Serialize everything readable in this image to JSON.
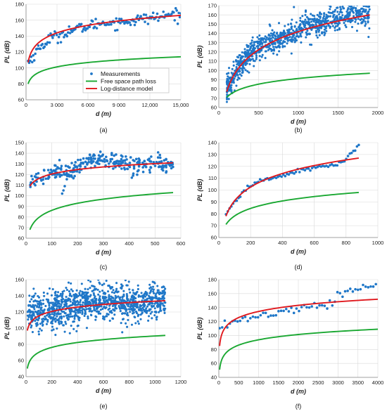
{
  "legend": {
    "position": "inside-center of panel (a)",
    "entries": [
      {
        "label": "Measurements",
        "kind": "points",
        "color": "#1f77c8"
      },
      {
        "label": "Free space path loss",
        "kind": "line",
        "color": "#1aa832"
      },
      {
        "label": "Log-distance model",
        "kind": "line",
        "color": "#e0191e"
      }
    ]
  },
  "colors": {
    "measurements": "#1f77c8",
    "fspl": "#1aa832",
    "logdist": "#e0191e",
    "grid": "#d9d9d9",
    "axis": "#888888"
  },
  "chart_data": [
    {
      "type": "scatter",
      "caption": "(a)",
      "xlabel": "d (m)",
      "ylabel": "PL (dB)",
      "xlim": [
        0,
        15000
      ],
      "ylim": [
        60,
        180
      ],
      "xticks": [
        0,
        3000,
        6000,
        9000,
        12000,
        15000
      ],
      "xtick_labels": [
        "0",
        "3 000",
        "6 000",
        "9 000",
        "12,000",
        "15,000"
      ],
      "yticks": [
        60,
        80,
        100,
        120,
        140,
        160,
        180
      ],
      "grid": true,
      "series": [
        {
          "name": "Measurements",
          "kind": "points",
          "count": 150,
          "x_range": [
            200,
            15000
          ],
          "trend": [
            [
              300,
              108
            ],
            [
              600,
              113
            ],
            [
              1000,
              121
            ],
            [
              1500,
              127
            ],
            [
              2000,
              133
            ],
            [
              2500,
              140
            ],
            [
              3000,
              138
            ],
            [
              4000,
              146
            ],
            [
              5000,
              149
            ],
            [
              6000,
              152
            ],
            [
              7000,
              156
            ],
            [
              8000,
              157
            ],
            [
              9000,
              157
            ],
            [
              10000,
              159
            ],
            [
              11000,
              161
            ],
            [
              12000,
              163
            ],
            [
              13000,
              164
            ],
            [
              14000,
              167
            ],
            [
              15000,
              168
            ]
          ],
          "spread": 3.5
        },
        {
          "name": "Free space path loss",
          "kind": "line",
          "x_range": [
            200,
            15000
          ],
          "y_start": 80,
          "y_end": 114
        },
        {
          "name": "Log-distance model",
          "kind": "line",
          "x_range": [
            200,
            15000
          ],
          "y_start": 107,
          "y_end": 166
        }
      ]
    },
    {
      "type": "scatter",
      "caption": "(b)",
      "xlabel": "d (m)",
      "ylabel": "PL (dB)",
      "xlim": [
        0,
        2000
      ],
      "ylim": [
        60,
        170
      ],
      "xticks": [
        0,
        500,
        1000,
        1500,
        2000
      ],
      "yticks": [
        60,
        70,
        80,
        90,
        100,
        110,
        120,
        130,
        140,
        150,
        160,
        170
      ],
      "grid": true,
      "series": [
        {
          "name": "Measurements",
          "kind": "points",
          "count": 900,
          "x_range": [
            100,
            1900
          ],
          "trend": [
            [
              100,
              80
            ],
            [
              200,
              95
            ],
            [
              300,
              110
            ],
            [
              400,
              118
            ],
            [
              500,
              125
            ],
            [
              600,
              129
            ],
            [
              700,
              133
            ],
            [
              800,
              138
            ],
            [
              900,
              141
            ],
            [
              1000,
              143
            ],
            [
              1100,
              147
            ],
            [
              1200,
              150
            ],
            [
              1300,
              152
            ],
            [
              1400,
              155
            ],
            [
              1500,
              158
            ],
            [
              1600,
              160
            ],
            [
              1700,
              161
            ],
            [
              1800,
              161
            ],
            [
              1900,
              161
            ]
          ],
          "spread": 7
        },
        {
          "name": "Free space path loss",
          "kind": "line",
          "x_range": [
            100,
            1900
          ],
          "y_start": 71,
          "y_end": 97
        },
        {
          "name": "Log-distance model",
          "kind": "line",
          "x_range": [
            100,
            1900
          ],
          "y_start": 77,
          "y_end": 160
        }
      ]
    },
    {
      "type": "scatter",
      "caption": "(c)",
      "xlabel": "d (m)",
      "ylabel": "PL (dB)",
      "xlim": [
        0,
        600
      ],
      "ylim": [
        60,
        150
      ],
      "xticks": [
        0,
        100,
        200,
        300,
        400,
        500,
        600
      ],
      "yticks": [
        60,
        70,
        80,
        90,
        100,
        110,
        120,
        130,
        140,
        150
      ],
      "grid": true,
      "series": [
        {
          "name": "Measurements",
          "kind": "points",
          "count": 280,
          "x_range": [
            15,
            570
          ],
          "trend": [
            [
              15,
              112
            ],
            [
              50,
              117
            ],
            [
              100,
              122
            ],
            [
              130,
              126
            ],
            [
              150,
              120
            ],
            [
              200,
              127
            ],
            [
              250,
              133
            ],
            [
              300,
              133
            ],
            [
              350,
              131
            ],
            [
              400,
              129
            ],
            [
              450,
              129
            ],
            [
              500,
              130
            ],
            [
              570,
              132
            ]
          ],
          "spread": 4,
          "outliers": [
            [
              140,
              102
            ],
            [
              145,
              105
            ],
            [
              150,
              109
            ],
            [
              410,
              117
            ],
            [
              415,
              119
            ]
          ]
        },
        {
          "name": "Free space path loss",
          "kind": "line",
          "x_range": [
            15,
            570
          ],
          "y_start": 68,
          "y_end": 103
        },
        {
          "name": "Log-distance model",
          "kind": "line",
          "x_range": [
            15,
            570
          ],
          "y_start": 109,
          "y_end": 131
        }
      ]
    },
    {
      "type": "scatter",
      "caption": "(d)",
      "xlabel": "d (m)",
      "ylabel": "PL (dB)",
      "xlim": [
        0,
        1000
      ],
      "ylim": [
        60,
        140
      ],
      "xticks": [
        0,
        200,
        400,
        600,
        800,
        1000
      ],
      "yticks": [
        60,
        70,
        80,
        90,
        100,
        110,
        120,
        130,
        140
      ],
      "grid": true,
      "series": [
        {
          "name": "Measurements",
          "kind": "points",
          "count": 75,
          "x_range": [
            45,
            880
          ],
          "trend": [
            [
              45,
              80
            ],
            [
              100,
              90
            ],
            [
              150,
              98
            ],
            [
              200,
              104
            ],
            [
              250,
              107
            ],
            [
              300,
              109
            ],
            [
              350,
              111
            ],
            [
              400,
              112
            ],
            [
              450,
              114
            ],
            [
              500,
              116
            ],
            [
              550,
              118
            ],
            [
              600,
              119
            ],
            [
              650,
              120
            ],
            [
              700,
              121
            ],
            [
              750,
              122
            ],
            [
              800,
              125
            ],
            [
              820,
              130
            ],
            [
              850,
              133
            ],
            [
              880,
              137
            ]
          ],
          "spread": 0.8
        },
        {
          "name": "Free space path loss",
          "kind": "line",
          "x_range": [
            45,
            880
          ],
          "y_start": 71,
          "y_end": 98
        },
        {
          "name": "Log-distance model",
          "kind": "line",
          "x_range": [
            45,
            880
          ],
          "y_start": 78,
          "y_end": 127
        }
      ]
    },
    {
      "type": "scatter",
      "caption": "(e)",
      "xlabel": "d (m)",
      "ylabel": "PL (dB)",
      "xlim": [
        0,
        1200
      ],
      "ylim": [
        40,
        160
      ],
      "xticks": [
        0,
        200,
        400,
        600,
        800,
        1000,
        1200
      ],
      "yticks": [
        40,
        60,
        80,
        100,
        120,
        140,
        160
      ],
      "grid": true,
      "series": [
        {
          "name": "Measurements",
          "kind": "points",
          "count": 1100,
          "x_range": [
            10,
            1080
          ],
          "trend": [
            [
              10,
              120
            ],
            [
              100,
              118
            ],
            [
              200,
              122
            ],
            [
              300,
              125
            ],
            [
              400,
              130
            ],
            [
              500,
              133
            ],
            [
              600,
              135
            ],
            [
              700,
              133
            ],
            [
              800,
              130
            ],
            [
              900,
              130
            ],
            [
              1000,
              135
            ],
            [
              1080,
              138
            ]
          ],
          "spread": 11
        },
        {
          "name": "Free space path loss",
          "kind": "line",
          "x_range": [
            10,
            1080
          ],
          "y_start": 50,
          "y_end": 91
        },
        {
          "name": "Log-distance model",
          "kind": "line",
          "x_range": [
            10,
            1080
          ],
          "y_start": 97,
          "y_end": 134
        }
      ]
    },
    {
      "type": "scatter",
      "caption": "(f)",
      "xlabel": "d (m)",
      "ylabel": "PL (dB)",
      "xlim": [
        0,
        4000
      ],
      "ylim": [
        40,
        180
      ],
      "xticks": [
        0,
        500,
        1000,
        1500,
        2000,
        2500,
        3000,
        3500,
        4000
      ],
      "yticks": [
        40,
        60,
        80,
        100,
        120,
        140,
        160,
        180
      ],
      "grid": true,
      "series": [
        {
          "name": "Measurements",
          "kind": "points",
          "count": 62,
          "x_range": [
            20,
            3950
          ],
          "trend": [
            [
              20,
              110
            ],
            [
              200,
              116
            ],
            [
              500,
              121
            ],
            [
              800,
              125
            ],
            [
              1000,
              128
            ],
            [
              1500,
              133
            ],
            [
              2000,
              139
            ],
            [
              2500,
              142
            ],
            [
              2800,
              147
            ],
            [
              3000,
              156
            ],
            [
              3200,
              162
            ],
            [
              3500,
              168
            ],
            [
              3950,
              173
            ]
          ],
          "spread": 3
        },
        {
          "name": "Free space path loss",
          "kind": "line",
          "x_range": [
            20,
            4000
          ],
          "y_start": 51,
          "y_end": 109
        },
        {
          "name": "Log-distance model",
          "kind": "line",
          "x_range": [
            20,
            4000
          ],
          "y_start": 85,
          "y_end": 152
        }
      ]
    }
  ]
}
